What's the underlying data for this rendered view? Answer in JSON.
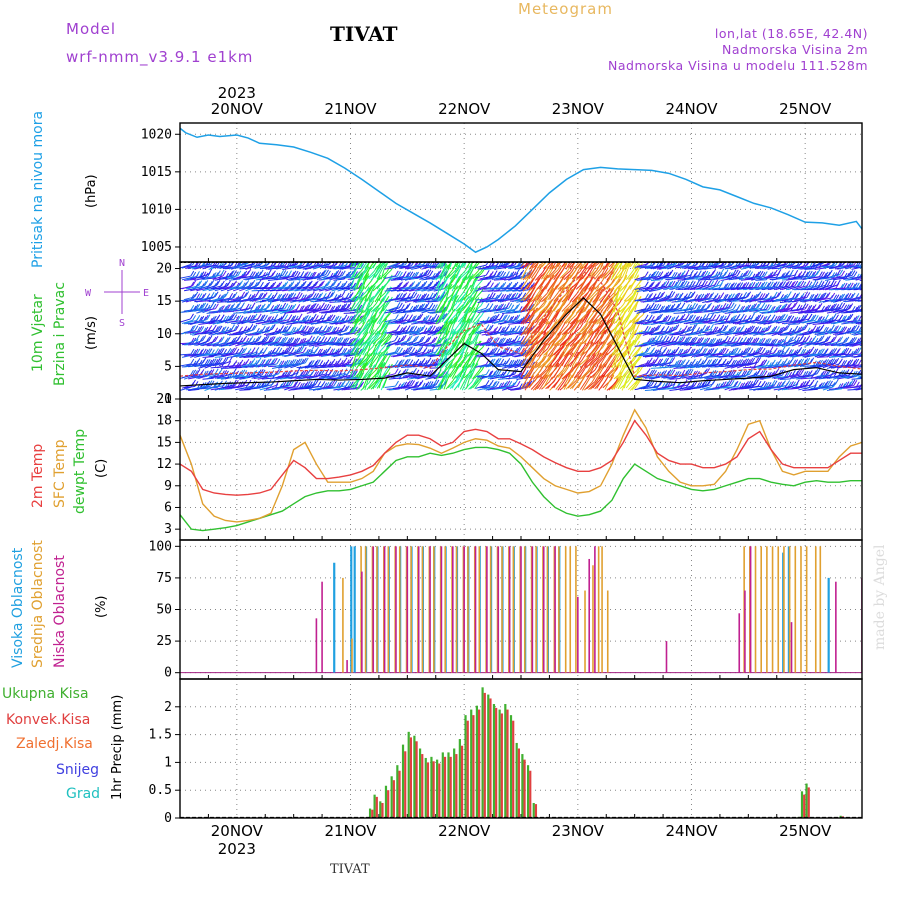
{
  "header": {
    "model_label": "Model",
    "model_name": "wrf-nmm_v3.9.1 e1km",
    "station": "TIVAT",
    "meteogram_label": "Meteogram",
    "lonlat": "lon,lat (18.65E, 42.4N)",
    "elevation": "Nadmorska Visina 2m",
    "model_elevation": "Nadmorska Visina u modelu 111.528m"
  },
  "footer_station": "TIVAT",
  "credit": "made by Angel",
  "colors": {
    "pressure": "#1ea0e6",
    "temp2m": "#e84040",
    "sfc_temp": "#e0a030",
    "dewpt": "#30c030",
    "cloud_high": "#20a0e0",
    "cloud_mid": "#e0a030",
    "cloud_low": "#c02090",
    "precip_total": "#40b030",
    "precip_conv": "#e04040",
    "wind_speed": "#000000",
    "wind_gust": "#e04040"
  },
  "chart_data": [
    {
      "type": "line",
      "panel": "pressure",
      "ylabel_side": "Pritisak na nivou mora",
      "ylabel_unit": "(hPa)",
      "ylim": [
        1003,
        1021.5
      ],
      "yticks": [
        1005,
        1010,
        1015,
        1020
      ],
      "x": [
        -0.5,
        -0.45,
        -0.35,
        -0.25,
        -0.15,
        0,
        0.1,
        0.2,
        0.35,
        0.5,
        0.65,
        0.8,
        0.95,
        1.1,
        1.25,
        1.4,
        1.55,
        1.7,
        1.85,
        2.0,
        2.1,
        2.2,
        2.3,
        2.45,
        2.6,
        2.75,
        2.9,
        3.05,
        3.2,
        3.35,
        3.5,
        3.65,
        3.8,
        3.95,
        4.1,
        4.25,
        4.4,
        4.55,
        4.7,
        4.85,
        5.0,
        5.15,
        5.3,
        5.45,
        5.5
      ],
      "series": [
        {
          "values": [
            1020.8,
            1020.2,
            1019.6,
            1019.9,
            1019.7,
            1019.9,
            1019.5,
            1018.8,
            1018.6,
            1018.3,
            1017.6,
            1016.8,
            1015.5,
            1014.0,
            1012.4,
            1010.8,
            1009.5,
            1008.2,
            1006.8,
            1005.4,
            1004.3,
            1005.0,
            1006.0,
            1007.8,
            1010.0,
            1012.2,
            1014.0,
            1015.3,
            1015.6,
            1015.4,
            1015.3,
            1015.2,
            1014.8,
            1014.0,
            1013.0,
            1012.6,
            1011.7,
            1010.8,
            1010.2,
            1009.3,
            1008.3,
            1008.2,
            1007.9,
            1008.4,
            1007.4
          ]
        }
      ]
    },
    {
      "type": "line",
      "panel": "wind",
      "ylabel_side": [
        "10m Vjetar",
        "Brzina i Pravac"
      ],
      "ylabel_unit": "(m/s)",
      "ylim": [
        0,
        21
      ],
      "yticks": [
        0,
        5,
        10,
        15,
        20
      ],
      "x": [
        -0.5,
        -0.3,
        -0.1,
        0.1,
        0.3,
        0.5,
        0.7,
        0.9,
        1.1,
        1.3,
        1.5,
        1.7,
        1.85,
        2.0,
        2.15,
        2.3,
        2.5,
        2.7,
        2.9,
        3.05,
        3.2,
        3.35,
        3.5,
        3.7,
        3.9,
        4.1,
        4.3,
        4.5,
        4.7,
        4.9,
        5.1,
        5.3,
        5.5
      ],
      "series": [
        {
          "name": "speed",
          "values": [
            2,
            2.2,
            2.4,
            2.5,
            2.6,
            2.8,
            3.0,
            2.9,
            3.0,
            3.2,
            4.0,
            3.5,
            6.0,
            8.5,
            7.0,
            4.5,
            4.2,
            9.0,
            13.0,
            15.5,
            13.0,
            8.0,
            3.0,
            2.7,
            2.5,
            2.8,
            3.0,
            3.2,
            3.5,
            4.5,
            4.8,
            4.0,
            3.8
          ]
        },
        {
          "name": "gust",
          "values": [
            3.5,
            3.8,
            3.9,
            4.0,
            4.1,
            4.3,
            4.4,
            4.3,
            4.5,
            4.8,
            5.2,
            4.8,
            8.0,
            10.5,
            11.5,
            8.0,
            7.0,
            12.5,
            17.0,
            19.5,
            18.0,
            13.5,
            3.5,
            3.7,
            3.6,
            4.0,
            4.2,
            4.5,
            4.6,
            5.2,
            5.6,
            5.0,
            4.6
          ]
        }
      ],
      "barb_hue_bands": [
        {
          "x0": -0.5,
          "x1": 1.0,
          "hue": "blue"
        },
        {
          "x0": 1.0,
          "x1": 1.3,
          "hue": "green"
        },
        {
          "x0": 1.3,
          "x1": 1.75,
          "hue": "blue"
        },
        {
          "x0": 1.75,
          "x1": 2.1,
          "hue": "green"
        },
        {
          "x0": 2.1,
          "x1": 2.5,
          "hue": "blue"
        },
        {
          "x0": 2.5,
          "x1": 3.3,
          "hue": "red"
        },
        {
          "x0": 3.3,
          "x1": 3.5,
          "hue": "yellow"
        },
        {
          "x0": 3.5,
          "x1": 5.5,
          "hue": "blue"
        }
      ],
      "compass": [
        "N",
        "E",
        "S",
        "W"
      ]
    },
    {
      "type": "line",
      "panel": "temperature",
      "ylabel_side": [
        "2m Temp",
        "SFC Temp",
        "dewpt Temp"
      ],
      "ylabel_unit": "(C)",
      "ylim": [
        1.5,
        21
      ],
      "yticks": [
        3,
        6,
        9,
        12,
        15,
        18,
        21
      ],
      "x": [
        -0.5,
        -0.4,
        -0.3,
        -0.2,
        -0.1,
        0,
        0.1,
        0.2,
        0.3,
        0.4,
        0.5,
        0.6,
        0.7,
        0.8,
        0.9,
        1.0,
        1.1,
        1.2,
        1.3,
        1.4,
        1.5,
        1.6,
        1.7,
        1.8,
        1.9,
        2.0,
        2.1,
        2.2,
        2.3,
        2.4,
        2.5,
        2.6,
        2.7,
        2.8,
        2.9,
        3.0,
        3.1,
        3.2,
        3.3,
        3.4,
        3.5,
        3.6,
        3.7,
        3.8,
        3.9,
        4.0,
        4.1,
        4.2,
        4.3,
        4.4,
        4.5,
        4.6,
        4.7,
        4.8,
        4.9,
        5.0,
        5.1,
        5.2,
        5.3,
        5.4,
        5.5
      ],
      "series": [
        {
          "name": "2m Temp",
          "values": [
            12,
            11,
            8.5,
            8,
            7.8,
            7.7,
            7.8,
            8,
            8.5,
            10.5,
            12.5,
            11.5,
            10,
            10,
            10.2,
            10.5,
            11,
            11.8,
            13.5,
            15,
            16,
            16,
            15.5,
            14.5,
            15,
            16.5,
            16.8,
            16.5,
            15.5,
            15.5,
            14.8,
            14,
            13,
            12.2,
            11.5,
            11,
            11,
            11.5,
            12.5,
            15,
            18,
            16,
            13.5,
            12.5,
            12,
            12,
            11.5,
            11.5,
            12,
            13,
            15.5,
            16.5,
            14,
            12,
            11.5,
            11.5,
            11.5,
            11.5,
            12.5,
            13.5,
            13.5
          ]
        },
        {
          "name": "SFC Temp",
          "values": [
            16,
            12,
            6.5,
            4.8,
            4.2,
            4,
            4.2,
            4.5,
            5.2,
            9,
            14,
            15,
            12,
            9.5,
            9.5,
            9.5,
            10,
            11,
            13.5,
            14.5,
            14.8,
            14.7,
            14.2,
            13.5,
            14.2,
            15,
            15.5,
            15.3,
            14.5,
            14.2,
            13,
            11.5,
            10,
            9,
            8.5,
            8,
            8.2,
            9,
            12,
            16,
            19.5,
            17,
            13,
            11,
            9.5,
            9,
            9,
            9.2,
            11,
            14,
            17.5,
            18,
            14,
            11,
            10.5,
            11,
            11,
            11,
            13,
            14.5,
            15
          ]
        },
        {
          "name": "dewpt Temp",
          "values": [
            5,
            3,
            2.8,
            3,
            3.2,
            3.5,
            4,
            4.5,
            5,
            5.5,
            6.5,
            7.5,
            8,
            8.3,
            8.3,
            8.5,
            9,
            9.5,
            11,
            12.5,
            13,
            13,
            13.5,
            13.2,
            13.5,
            14,
            14.3,
            14.3,
            14,
            13.5,
            12,
            9.5,
            7.5,
            6,
            5.2,
            4.8,
            5,
            5.5,
            7,
            10,
            12,
            11,
            10,
            9.5,
            9,
            8.5,
            8.3,
            8.5,
            9,
            9.5,
            10,
            10,
            9.5,
            9.2,
            9,
            9.5,
            9.7,
            9.5,
            9.5,
            9.7,
            9.7
          ]
        }
      ]
    },
    {
      "type": "bar",
      "panel": "cloud",
      "ylabel_side": [
        "Visoka Oblacnost",
        "Srednja Oblacnost",
        "Niska Oblacnost"
      ],
      "ylabel_unit": "(%)",
      "ylim": [
        -5,
        105
      ],
      "yticks": [
        0,
        25,
        50,
        75,
        100
      ],
      "series": [
        {
          "name": "Visoka Oblacnost",
          "x": [
            0.87,
            1.02,
            1.05,
            1.15,
            1.25,
            1.35,
            1.45,
            1.55,
            1.65,
            1.75,
            1.85,
            1.95,
            2.05,
            2.15,
            2.25,
            2.35,
            2.45,
            2.55,
            2.65,
            2.75,
            2.85,
            4.82,
            4.87,
            5.22
          ],
          "values": [
            87,
            100,
            100,
            100,
            100,
            100,
            100,
            100,
            100,
            100,
            100,
            100,
            100,
            100,
            100,
            100,
            100,
            100,
            100,
            100,
            100,
            95,
            100,
            75
          ]
        },
        {
          "name": "Srednja Oblacnost",
          "x": [
            0.92,
            1.0,
            1.08,
            1.12,
            1.18,
            1.22,
            1.28,
            1.32,
            1.38,
            1.42,
            1.48,
            1.52,
            1.58,
            1.62,
            1.68,
            1.72,
            1.78,
            1.82,
            1.88,
            1.92,
            1.98,
            2.02,
            2.08,
            2.12,
            2.18,
            2.22,
            2.28,
            2.32,
            2.38,
            2.42,
            2.48,
            2.52,
            2.58,
            2.62,
            2.68,
            2.72,
            2.78,
            2.82,
            2.88,
            2.92,
            2.97,
            3.05,
            3.12,
            3.17,
            3.2,
            3.25,
            4.45,
            4.5,
            4.55,
            4.6,
            4.65,
            4.7,
            4.75,
            4.8,
            4.85,
            4.9,
            4.95,
            5.0,
            5.08,
            5.12
          ],
          "values": [
            75,
            27,
            100,
            100,
            100,
            100,
            100,
            100,
            100,
            100,
            100,
            100,
            100,
            100,
            100,
            100,
            100,
            100,
            100,
            100,
            100,
            100,
            100,
            100,
            100,
            100,
            100,
            100,
            100,
            100,
            100,
            100,
            100,
            100,
            100,
            100,
            100,
            100,
            100,
            100,
            100,
            65,
            85,
            100,
            100,
            65,
            100,
            100,
            100,
            100,
            100,
            100,
            100,
            100,
            100,
            100,
            100,
            100,
            100,
            100
          ]
        },
        {
          "name": "Niska Oblacnost",
          "x": [
            0.7,
            0.75,
            0.97,
            1.1,
            1.2,
            1.3,
            1.4,
            1.5,
            1.6,
            1.7,
            1.8,
            1.9,
            2.0,
            2.1,
            2.2,
            2.3,
            2.4,
            2.5,
            2.6,
            2.7,
            2.8,
            3.0,
            3.1,
            3.15,
            3.78,
            4.42,
            4.47,
            4.52,
            4.88,
            5.27,
            5.5
          ],
          "values": [
            43,
            72,
            10,
            80,
            100,
            100,
            100,
            100,
            100,
            100,
            100,
            100,
            100,
            100,
            100,
            100,
            100,
            100,
            100,
            100,
            100,
            60,
            90,
            100,
            25,
            47,
            65,
            100,
            40,
            72,
            75
          ]
        }
      ]
    },
    {
      "type": "bar",
      "panel": "precip",
      "ylabel_side": [
        "Ukupna Kisa",
        "Konvek.Kisa",
        "Zaledj.Kisa",
        "Snijeg",
        "Grad"
      ],
      "ylabel_unit": "1hr Precip (mm)",
      "ylim": [
        0,
        2.5
      ],
      "yticks": [
        0,
        0.5,
        1,
        1.5,
        2
      ],
      "x": [
        1.18,
        1.22,
        1.27,
        1.32,
        1.37,
        1.42,
        1.47,
        1.52,
        1.57,
        1.62,
        1.67,
        1.72,
        1.77,
        1.82,
        1.87,
        1.92,
        1.97,
        2.02,
        2.07,
        2.12,
        2.17,
        2.22,
        2.27,
        2.32,
        2.37,
        2.42,
        2.47,
        2.52,
        2.57,
        2.62,
        4.95,
        4.98,
        5.02,
        5.32
      ],
      "series": [
        {
          "name": "Ukupna Kisa",
          "values": [
            0.17,
            0.42,
            0.3,
            0.58,
            0.75,
            0.95,
            1.32,
            1.55,
            1.48,
            1.25,
            1.08,
            1.1,
            1.05,
            1.18,
            1.18,
            1.25,
            1.42,
            1.85,
            1.95,
            2.02,
            2.35,
            2.22,
            2.05,
            1.95,
            2.05,
            1.85,
            1.35,
            1.15,
            0.95,
            0.27,
            0.02,
            0.48,
            0.62,
            0.04
          ]
        },
        {
          "name": "Konvek.Kisa",
          "values": [
            0.15,
            0.38,
            0.27,
            0.5,
            0.68,
            0.85,
            1.2,
            1.45,
            1.38,
            1.15,
            1.0,
            1.02,
            0.98,
            1.1,
            1.1,
            1.15,
            1.3,
            1.75,
            1.85,
            1.95,
            2.25,
            2.15,
            1.98,
            1.88,
            1.95,
            1.75,
            1.25,
            1.05,
            0.85,
            0.25,
            0.02,
            0.42,
            0.55,
            0.03
          ]
        }
      ]
    }
  ],
  "date_axis": {
    "year": "2023",
    "days": [
      "20NOV",
      "21NOV",
      "22NOV",
      "23NOV",
      "24NOV",
      "25NOV"
    ]
  }
}
